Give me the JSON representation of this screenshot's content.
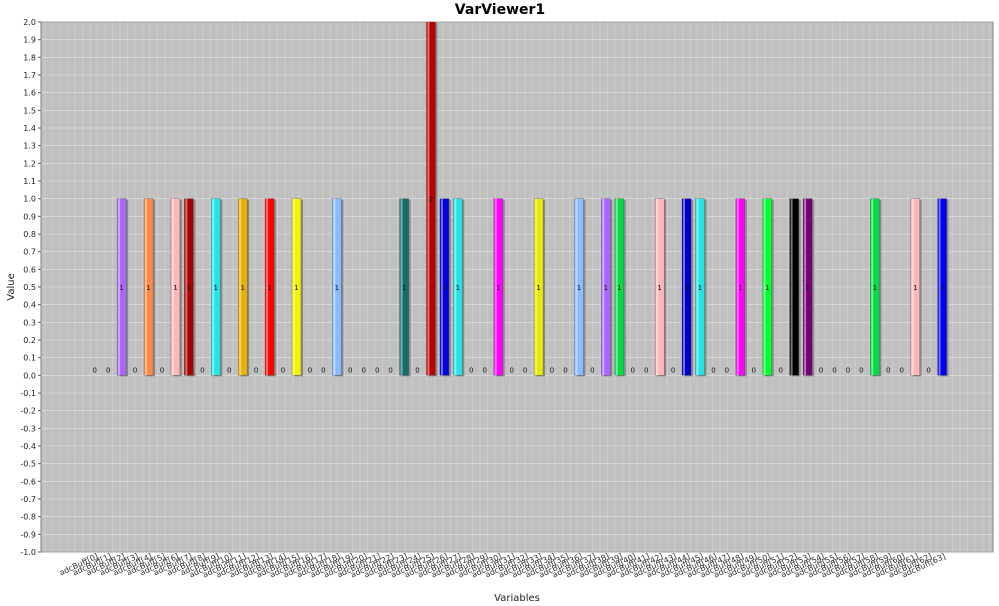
{
  "chart_data": {
    "type": "bar",
    "title": "VarViewer1",
    "xlabel": "Variables",
    "ylabel": "Value",
    "ylim": [
      -1.0,
      2.0
    ],
    "ytick_step": 0.1,
    "grid": true,
    "categories": [
      "adcBuff[0]",
      "adcBuff[1]",
      "adcBuff[2]",
      "adcBuff[3]",
      "adcBuff[4]",
      "adcBuff[5]",
      "adcBuff[6]",
      "adcBuff[7]",
      "adcBuff[8]",
      "adcBuff[9]",
      "adcBuff[10]",
      "adcBuff[11]",
      "adcBuff[12]",
      "adcBuff[13]",
      "adcBuff[14]",
      "adcBuff[15]",
      "adcBuff[16]",
      "adcBuff[17]",
      "adcBuff[18]",
      "adcBuff[19]",
      "adcBuff[20]",
      "adcBuff[21]",
      "adcBuff[22]",
      "adcBuff[23]",
      "adcBuff[24]",
      "adcBuff[25]",
      "adcBuff[26]",
      "adcBuff[27]",
      "adcBuff[28]",
      "adcBuff[29]",
      "adcBuff[30]",
      "adcBuff[31]",
      "adcBuff[32]",
      "adcBuff[33]",
      "adcBuff[34]",
      "adcBuff[35]",
      "adcBuff[36]",
      "adcBuff[37]",
      "adcBuff[38]",
      "adcBuff[39]",
      "adcBuff[40]",
      "adcBuff[41]",
      "adcBuff[42]",
      "adcBuff[43]",
      "adcBuff[44]",
      "adcBuff[45]",
      "adcBuff[46]",
      "adcBuff[47]",
      "adcBuff[48]",
      "adcBuff[49]",
      "adcBuff[50]",
      "adcBuff[51]",
      "adcBuff[52]",
      "adcBuff[53]",
      "adcBuff[54]",
      "adcBuff[55]",
      "adcBuff[56]",
      "adcBuff[57]",
      "adcBuff[58]",
      "adcBuff[59]",
      "adcBuff[60]",
      "adcBuff[61]",
      "adcBuff[62]",
      "adcBuff[63]"
    ],
    "values": [
      0,
      0,
      1,
      0,
      1,
      0,
      1,
      1,
      0,
      1,
      0,
      1,
      0,
      1,
      0,
      1,
      0,
      0,
      1,
      0,
      0,
      0,
      0,
      1,
      0,
      2,
      1,
      1,
      0,
      0,
      1,
      0,
      0,
      1,
      0,
      0,
      1,
      0,
      1,
      1,
      0,
      0,
      1,
      0,
      1,
      1,
      0,
      0,
      1,
      0,
      1,
      0,
      1,
      1,
      0,
      0,
      0,
      0,
      1,
      0,
      0,
      1,
      0,
      1
    ],
    "colors": [
      "#ff5555",
      "#5555ff",
      "#aa66ff",
      "#ff8844",
      "#ff8844",
      "#55ff55",
      "#ffb6b6",
      "#aa0000",
      "#0000cc",
      "#22e4e4",
      "#cc9900",
      "#e8b000",
      "#0000ff",
      "#ff0000",
      "#ffff55",
      "#f4f400",
      "#ff00ff",
      "#888888",
      "#88bbff",
      "#4444aa",
      "#aaaaaa",
      "#0000aa",
      "#aa0000",
      "#116e6e",
      "#00aa00",
      "#bb0000",
      "#0000dd",
      "#22e4e4",
      "#ff00ff",
      "#ffff00",
      "#ff00ff",
      "#ffaa00",
      "#aa00aa",
      "#e8e800",
      "#22e4e4",
      "#ff8800",
      "#88bbff",
      "#ff0000",
      "#aa66ff",
      "#00dd44",
      "#ff00ff",
      "#00aaaa",
      "#ffb6b6",
      "#00ff00",
      "#0000cc",
      "#22e4e4",
      "#ffcc00",
      "#aaaaaa",
      "#ff00ff",
      "#ff0000",
      "#00ff33",
      "#888888",
      "#000000",
      "#770077",
      "#ff00ff",
      "#00ff00",
      "#888888",
      "#ffff00",
      "#00dd44",
      "#aaaaaa",
      "#00ff00",
      "#ffb6b6",
      "#00ffff",
      "#0000ee"
    ]
  }
}
